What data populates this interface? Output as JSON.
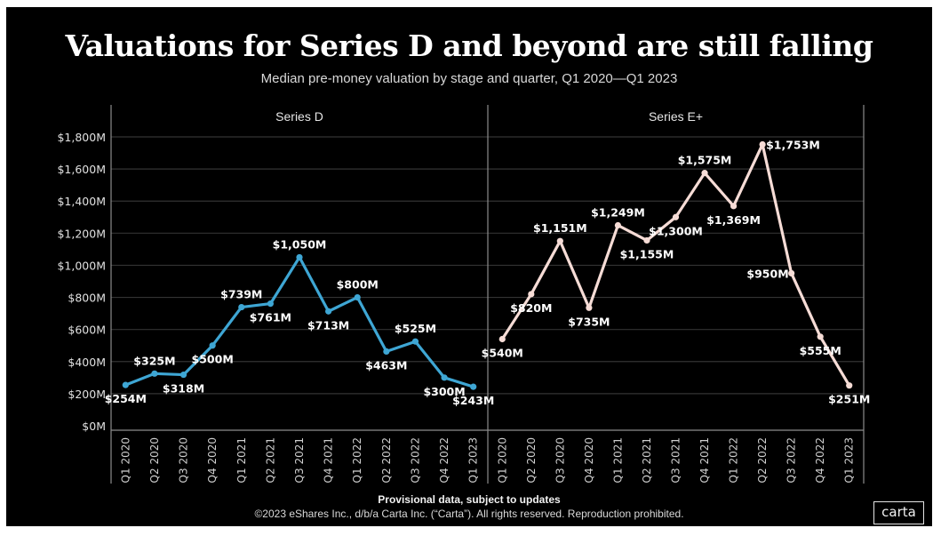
{
  "title": "Valuations for Series D and beyond are still falling",
  "subtitle": "Median pre-money valuation by stage and quarter, Q1 2020—Q1 2023",
  "footer": {
    "note": "Provisional data, subject to updates",
    "copyright": "©2023 eShares Inc., d/b/a Carta Inc. (“Carta”). All rights reserved. Reproduction prohibited."
  },
  "logo": "carta",
  "colors": {
    "background": "#000000",
    "series_d": "#3ea6d4",
    "series_e": "#f6dcd6",
    "grid": "#333333",
    "axis": "#8c8c8c",
    "text": "#ffffff"
  },
  "chart_data": {
    "type": "line",
    "title": "Valuations for Series D and beyond are still falling",
    "subtitle": "Median pre-money valuation by stage and quarter, Q1 2020—Q1 2023",
    "xlabel": "",
    "ylabel": "",
    "ylim": [
      0,
      1800
    ],
    "yticks": [
      0,
      200,
      400,
      600,
      800,
      1000,
      1200,
      1400,
      1600,
      1800
    ],
    "ytick_labels": [
      "$0M",
      "$200M",
      "$400M",
      "$600M",
      "$800M",
      "$1,000M",
      "$1,200M",
      "$1,400M",
      "$1,600M",
      "$1,800M"
    ],
    "grid": true,
    "legend": "none (panel headers)",
    "categories": [
      "Q1 2020",
      "Q2 2020",
      "Q3 2020",
      "Q4 2020",
      "Q1 2021",
      "Q2 2021",
      "Q3 2021",
      "Q4 2021",
      "Q1 2022",
      "Q2 2022",
      "Q3 2022",
      "Q4 2022",
      "Q1 2023"
    ],
    "panels": [
      {
        "name": "Series D",
        "values": [
          254,
          325,
          318,
          500,
          739,
          761,
          1050,
          713,
          800,
          463,
          525,
          300,
          243
        ],
        "labels": [
          "$254M",
          "$325M",
          "$318M",
          "$500M",
          "$739M",
          "$761M",
          "$1,050M",
          "$713M",
          "$800M",
          "$463M",
          "$525M",
          "$300M",
          "$243M"
        ],
        "label_pos": [
          "below",
          "above",
          "below",
          "below",
          "above",
          "below",
          "above",
          "below",
          "above",
          "below",
          "above",
          "below",
          "below"
        ]
      },
      {
        "name": "Series E+",
        "values": [
          540,
          820,
          1151,
          735,
          1249,
          1155,
          1300,
          1575,
          1369,
          1753,
          950,
          555,
          251
        ],
        "labels": [
          "$540M",
          "$820M",
          "$1,151M",
          "$735M",
          "$1,249M",
          "$1,155M",
          "$1,300M",
          "$1,575M",
          "$1,369M",
          "$1,753M",
          "$950M",
          "$555M",
          "$251M"
        ],
        "label_pos": [
          "below",
          "below",
          "above",
          "below",
          "above",
          "below",
          "below",
          "above",
          "below",
          "right",
          "left",
          "below",
          "below"
        ]
      }
    ]
  }
}
